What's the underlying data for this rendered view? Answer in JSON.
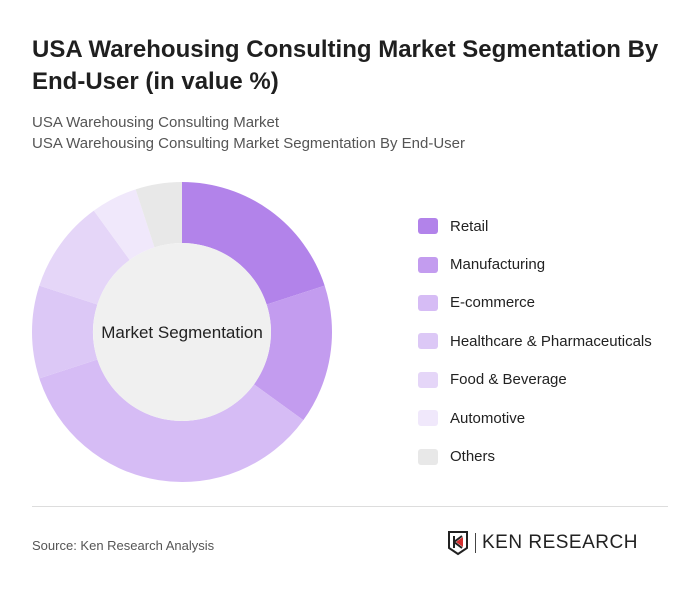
{
  "title": "USA Warehousing Consulting Market Segmentation By End-User (in value %)",
  "subtitle1": "USA Warehousing Consulting Market",
  "subtitle2": "USA Warehousing Consulting Market Segmentation By End-User",
  "source": "Source: Ken Research Analysis",
  "logo_text": "KEN RESEARCH",
  "chart_data": {
    "type": "pie",
    "variant": "donut",
    "center_label": "Market Segmentation",
    "legend_position": "right",
    "categories": [
      "Retail",
      "Manufacturing",
      "E-commerce",
      "Healthcare & Pharmaceuticals",
      "Food & Beverage",
      "Automotive",
      "Others"
    ],
    "values": [
      20,
      15,
      35,
      10,
      10,
      5,
      5
    ],
    "colors": [
      "#b283ea",
      "#c39cef",
      "#d6bcf5",
      "#dcc8f6",
      "#e5d6f8",
      "#f0e8fb",
      "#e8e8e8"
    ]
  }
}
